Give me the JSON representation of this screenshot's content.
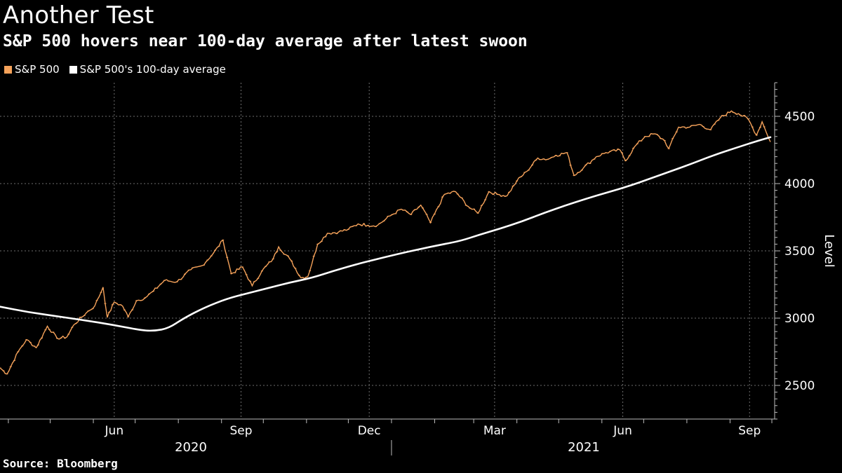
{
  "title": "Another Test",
  "subtitle": "S&P 500 hovers near 100-day average after latest swoon",
  "source": "Source: Bloomberg",
  "colors": {
    "background": "#000000",
    "sp500": "#f5a25a",
    "average": "#ffffff",
    "grid": "#6e6e6e",
    "axis": "#bdbdbd"
  },
  "chart_data": {
    "type": "line",
    "ylabel": "Level",
    "ylim": [
      2250,
      4750
    ],
    "yticks": [
      2500,
      3000,
      3500,
      4000,
      4500
    ],
    "xlim": [
      "2020-03-26",
      "2021-10-03"
    ],
    "month_ticks": [
      "2020-04-01",
      "2020-05-01",
      "2020-06-01",
      "2020-07-01",
      "2020-08-01",
      "2020-09-01",
      "2020-10-01",
      "2020-11-01",
      "2020-12-01",
      "2021-01-01",
      "2021-02-01",
      "2021-03-01",
      "2021-04-01",
      "2021-05-01",
      "2021-06-01",
      "2021-07-01",
      "2021-08-01",
      "2021-09-01",
      "2021-10-01"
    ],
    "month_labels": [
      {
        "label": "Jun",
        "date": "2020-06-16"
      },
      {
        "label": "Sep",
        "date": "2020-09-15"
      },
      {
        "label": "Dec",
        "date": "2020-12-16"
      },
      {
        "label": "Mar",
        "date": "2021-03-16"
      },
      {
        "label": "Jun",
        "date": "2021-06-16"
      },
      {
        "label": "Sep",
        "date": "2021-09-15"
      }
    ],
    "year_labels": [
      {
        "label": "2020",
        "date": "2020-08-10"
      },
      {
        "label": "2021",
        "date": "2021-05-19"
      }
    ],
    "year_divider": "2021-01-01",
    "legend": {
      "position": "top-left"
    },
    "grid": true,
    "series": [
      {
        "name": "S&P 500",
        "x": [
          "2020-03-26",
          "2020-03-31",
          "2020-04-08",
          "2020-04-14",
          "2020-04-21",
          "2020-04-29",
          "2020-05-06",
          "2020-05-13",
          "2020-05-18",
          "2020-05-27",
          "2020-06-02",
          "2020-06-08",
          "2020-06-11",
          "2020-06-16",
          "2020-06-22",
          "2020-06-26",
          "2020-07-02",
          "2020-07-08",
          "2020-07-14",
          "2020-07-22",
          "2020-07-31",
          "2020-08-10",
          "2020-08-18",
          "2020-08-26",
          "2020-09-02",
          "2020-09-08",
          "2020-09-16",
          "2020-09-23",
          "2020-09-30",
          "2020-10-08",
          "2020-10-12",
          "2020-10-20",
          "2020-10-28",
          "2020-11-02",
          "2020-11-09",
          "2020-11-16",
          "2020-11-24",
          "2020-12-01",
          "2020-12-08",
          "2020-12-15",
          "2020-12-22",
          "2020-12-31",
          "2021-01-08",
          "2021-01-15",
          "2021-01-22",
          "2021-01-29",
          "2021-02-08",
          "2021-02-16",
          "2021-02-25",
          "2021-03-04",
          "2021-03-12",
          "2021-03-18",
          "2021-03-25",
          "2021-04-01",
          "2021-04-08",
          "2021-04-16",
          "2021-04-23",
          "2021-04-29",
          "2021-05-07",
          "2021-05-12",
          "2021-05-19",
          "2021-05-28",
          "2021-06-04",
          "2021-06-14",
          "2021-06-18",
          "2021-06-25",
          "2021-07-02",
          "2021-07-09",
          "2021-07-16",
          "2021-07-19",
          "2021-07-26",
          "2021-08-03",
          "2021-08-10",
          "2021-08-18",
          "2021-08-25",
          "2021-09-02",
          "2021-09-07",
          "2021-09-14",
          "2021-09-20",
          "2021-09-24",
          "2021-09-30"
        ],
        "values": [
          2630,
          2585,
          2750,
          2840,
          2780,
          2940,
          2850,
          2860,
          2950,
          3040,
          3090,
          3230,
          3005,
          3120,
          3090,
          3010,
          3130,
          3150,
          3200,
          3280,
          3270,
          3360,
          3390,
          3480,
          3580,
          3330,
          3380,
          3240,
          3350,
          3440,
          3530,
          3440,
          3300,
          3310,
          3550,
          3630,
          3640,
          3660,
          3700,
          3690,
          3690,
          3760,
          3810,
          3770,
          3840,
          3710,
          3920,
          3940,
          3830,
          3780,
          3940,
          3920,
          3910,
          4020,
          4090,
          4190,
          4180,
          4210,
          4230,
          4060,
          4120,
          4200,
          4230,
          4250,
          4170,
          4280,
          4350,
          4370,
          4320,
          4260,
          4420,
          4420,
          4440,
          4400,
          4490,
          4540,
          4520,
          4480,
          4360,
          4460,
          4310
        ]
      },
      {
        "name": "S&P 500's 100-day average",
        "x": [
          "2020-03-26",
          "2020-04-15",
          "2020-05-05",
          "2020-05-25",
          "2020-06-15",
          "2020-07-05",
          "2020-07-15",
          "2020-07-25",
          "2020-08-05",
          "2020-08-20",
          "2020-09-05",
          "2020-09-20",
          "2020-10-05",
          "2020-10-20",
          "2020-11-05",
          "2020-11-20",
          "2020-12-05",
          "2020-12-20",
          "2021-01-05",
          "2021-01-20",
          "2021-02-05",
          "2021-02-20",
          "2021-03-05",
          "2021-03-20",
          "2021-04-05",
          "2021-04-20",
          "2021-05-05",
          "2021-05-20",
          "2021-06-05",
          "2021-06-20",
          "2021-07-05",
          "2021-07-20",
          "2021-08-05",
          "2021-08-20",
          "2021-09-05",
          "2021-09-20",
          "2021-09-30"
        ],
        "values": [
          3085,
          3045,
          3015,
          2985,
          2950,
          2910,
          2905,
          2925,
          3000,
          3080,
          3145,
          3185,
          3225,
          3265,
          3300,
          3350,
          3395,
          3435,
          3475,
          3510,
          3545,
          3575,
          3620,
          3665,
          3720,
          3780,
          3835,
          3885,
          3935,
          3980,
          4035,
          4090,
          4150,
          4210,
          4265,
          4315,
          4345
        ]
      }
    ]
  }
}
